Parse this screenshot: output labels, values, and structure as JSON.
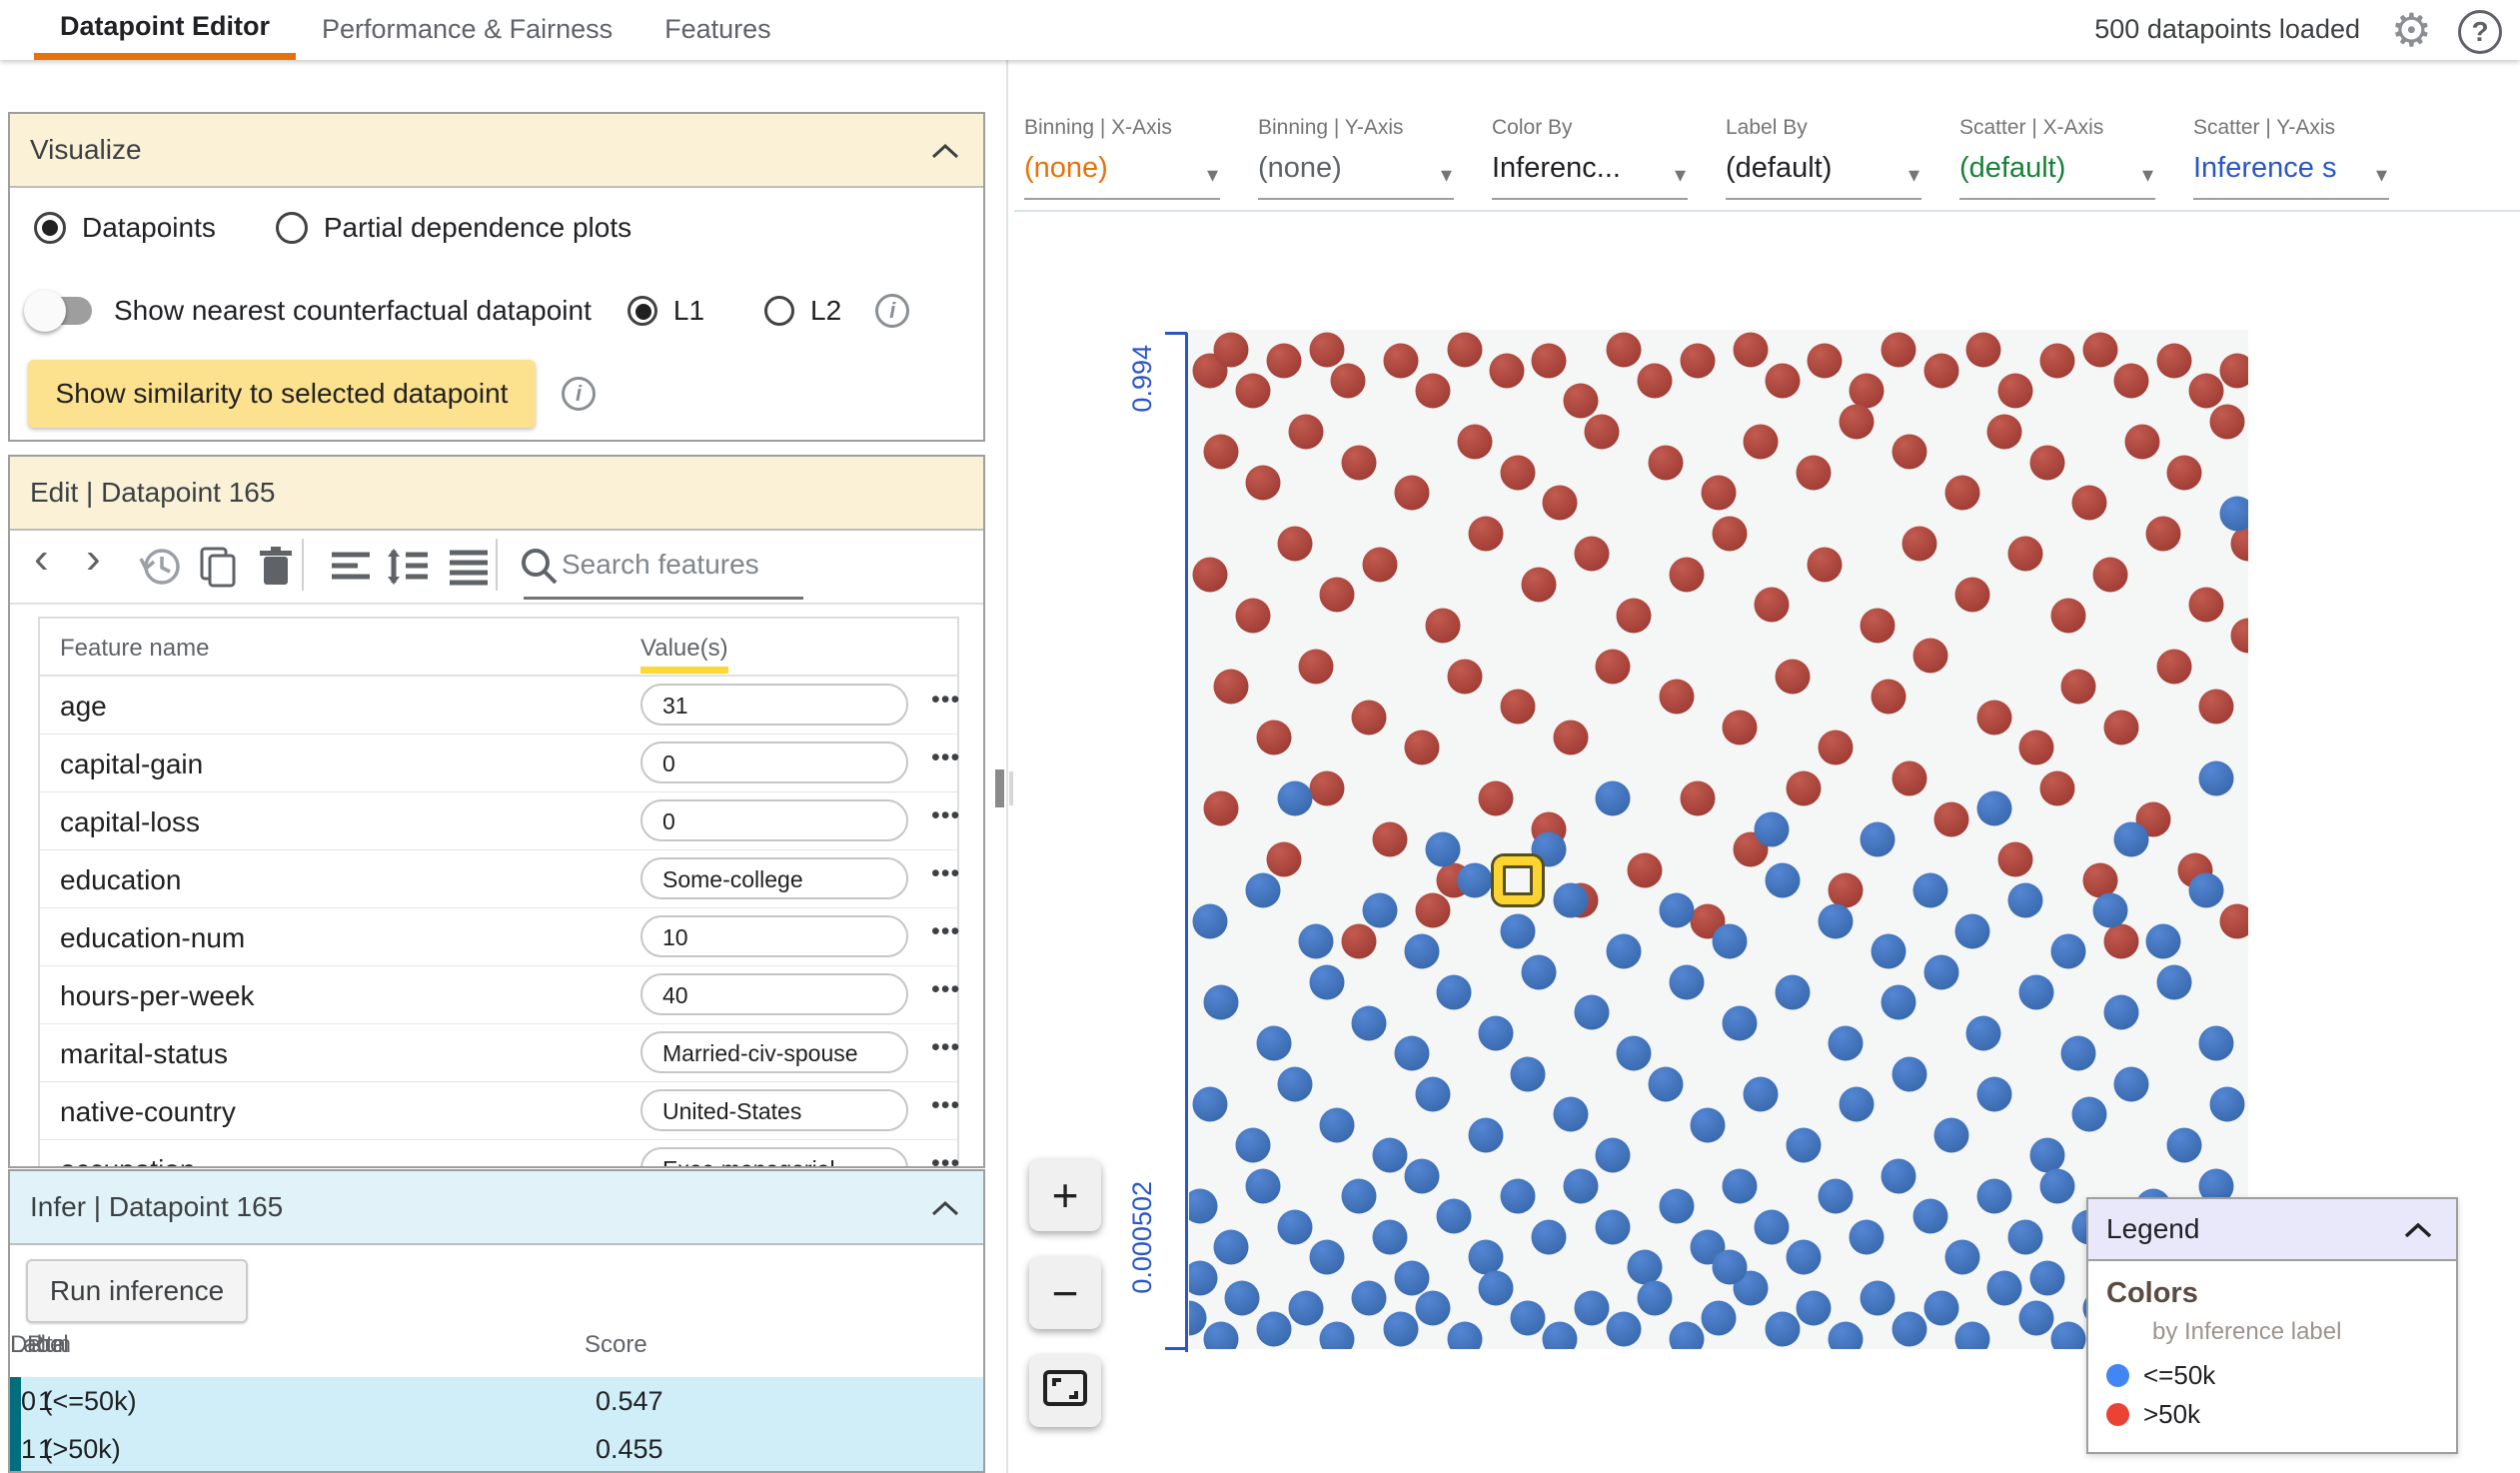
{
  "top_nav": {
    "tabs": [
      {
        "label": "Datapoint Editor",
        "active": true
      },
      {
        "label": "Performance & Fairness",
        "active": false
      },
      {
        "label": "Features",
        "active": false
      }
    ],
    "status": "500 datapoints loaded",
    "accent_color": "#e8710a"
  },
  "visualize": {
    "title": "Visualize",
    "radio_datapoints": "Datapoints",
    "radio_pdp": "Partial dependence plots",
    "toggle_label": "Show nearest counterfactual datapoint",
    "l1_label": "L1",
    "l2_label": "L2",
    "similarity_button": "Show similarity to selected datapoint"
  },
  "edit": {
    "title": "Edit | Datapoint 165",
    "search_placeholder": "Search features",
    "columns": {
      "name": "Feature name",
      "values": "Value(s)"
    },
    "features": [
      {
        "name": "age",
        "value": "31"
      },
      {
        "name": "capital-gain",
        "value": "0"
      },
      {
        "name": "capital-loss",
        "value": "0"
      },
      {
        "name": "education",
        "value": "Some-college"
      },
      {
        "name": "education-num",
        "value": "10"
      },
      {
        "name": "hours-per-week",
        "value": "40"
      },
      {
        "name": "marital-status",
        "value": "Married-civ-spouse"
      },
      {
        "name": "native-country",
        "value": "United-States"
      },
      {
        "name": "occupation",
        "value": "Exec-managerial"
      }
    ]
  },
  "infer": {
    "title": "Infer | Datapoint 165",
    "run_button": "Run inference",
    "columns": [
      "Run",
      "Label",
      "Score",
      "Delta"
    ],
    "rows": [
      {
        "run": "1",
        "label": "0 (<=50k)",
        "score": "0.547",
        "delta": ""
      },
      {
        "run": "1",
        "label": "1 (>50k)",
        "score": "0.455",
        "delta": ""
      }
    ],
    "row_accent_color": "#006e7f"
  },
  "controls": [
    {
      "label": "Binning | X-Axis",
      "value": "(none)",
      "value_color": "#e8710a"
    },
    {
      "label": "Binning | Y-Axis",
      "value": "(none)",
      "value_color": "#5f6368"
    },
    {
      "label": "Color By",
      "value": "Inferenc...",
      "value_color": "#202124"
    },
    {
      "label": "Label By",
      "value": "(default)",
      "value_color": "#202124"
    },
    {
      "label": "Scatter | X-Axis",
      "value": "(default)",
      "value_color": "#188038"
    },
    {
      "label": "Scatter | Y-Axis",
      "value": "Inference s",
      "value_color": "#2a56c6"
    }
  ],
  "zoom_controls": {
    "zoom_in": "+",
    "zoom_out": "−"
  },
  "legend": {
    "title": "Legend",
    "colors_heading": "Colors",
    "subtitle": "by Inference label",
    "items": [
      {
        "label": "<=50k",
        "color": "#4285f4"
      },
      {
        "label": ">50k",
        "color": "#ea4335"
      }
    ]
  },
  "chart_data": {
    "type": "scatter",
    "y_axis_top_label": "0.994",
    "y_axis_bottom_label": "0.000502",
    "axis_color": "#2a56c6",
    "units": "percent of plot area, y measured downward from top",
    "selected_point": {
      "x": 31,
      "y": 54,
      "marker_color": "#fdd32f"
    },
    "series": [
      {
        "name": ">50k",
        "css": "r",
        "color": "#a94438",
        "points": [
          [
            2,
            4
          ],
          [
            4,
            2
          ],
          [
            6,
            6
          ],
          [
            9,
            3
          ],
          [
            13,
            2
          ],
          [
            15,
            5
          ],
          [
            20,
            3
          ],
          [
            23,
            6
          ],
          [
            26,
            2
          ],
          [
            30,
            4
          ],
          [
            34,
            3
          ],
          [
            37,
            7
          ],
          [
            41,
            2
          ],
          [
            44,
            5
          ],
          [
            48,
            3
          ],
          [
            53,
            2
          ],
          [
            56,
            5
          ],
          [
            60,
            3
          ],
          [
            64,
            6
          ],
          [
            67,
            2
          ],
          [
            71,
            4
          ],
          [
            75,
            2
          ],
          [
            78,
            6
          ],
          [
            82,
            3
          ],
          [
            86,
            2
          ],
          [
            89,
            5
          ],
          [
            93,
            3
          ],
          [
            96,
            6
          ],
          [
            99,
            4
          ],
          [
            3,
            12
          ],
          [
            7,
            15
          ],
          [
            11,
            10
          ],
          [
            16,
            13
          ],
          [
            21,
            16
          ],
          [
            27,
            11
          ],
          [
            31,
            14
          ],
          [
            35,
            17
          ],
          [
            39,
            10
          ],
          [
            45,
            13
          ],
          [
            50,
            16
          ],
          [
            54,
            11
          ],
          [
            59,
            14
          ],
          [
            63,
            9
          ],
          [
            68,
            12
          ],
          [
            73,
            16
          ],
          [
            77,
            10
          ],
          [
            81,
            13
          ],
          [
            85,
            17
          ],
          [
            90,
            11
          ],
          [
            94,
            14
          ],
          [
            98,
            9
          ],
          [
            2,
            24
          ],
          [
            6,
            28
          ],
          [
            10,
            21
          ],
          [
            14,
            26
          ],
          [
            18,
            23
          ],
          [
            24,
            29
          ],
          [
            28,
            20
          ],
          [
            33,
            25
          ],
          [
            38,
            22
          ],
          [
            42,
            28
          ],
          [
            47,
            24
          ],
          [
            51,
            20
          ],
          [
            55,
            27
          ],
          [
            60,
            23
          ],
          [
            65,
            29
          ],
          [
            69,
            21
          ],
          [
            74,
            26
          ],
          [
            79,
            22
          ],
          [
            83,
            28
          ],
          [
            87,
            24
          ],
          [
            92,
            20
          ],
          [
            96,
            27
          ],
          [
            100,
            21
          ],
          [
            4,
            35
          ],
          [
            8,
            40
          ],
          [
            12,
            33
          ],
          [
            17,
            38
          ],
          [
            22,
            41
          ],
          [
            26,
            34
          ],
          [
            31,
            37
          ],
          [
            36,
            40
          ],
          [
            40,
            33
          ],
          [
            46,
            36
          ],
          [
            52,
            39
          ],
          [
            57,
            34
          ],
          [
            61,
            41
          ],
          [
            66,
            36
          ],
          [
            70,
            32
          ],
          [
            76,
            38
          ],
          [
            80,
            41
          ],
          [
            84,
            35
          ],
          [
            88,
            39
          ],
          [
            93,
            33
          ],
          [
            97,
            37
          ],
          [
            100,
            30
          ],
          [
            3,
            47
          ],
          [
            9,
            52
          ],
          [
            13,
            45
          ],
          [
            19,
            50
          ],
          [
            25,
            54
          ],
          [
            29,
            46
          ],
          [
            34,
            49
          ],
          [
            43,
            53
          ],
          [
            48,
            46
          ],
          [
            53,
            51
          ],
          [
            58,
            45
          ],
          [
            62,
            55
          ],
          [
            72,
            48
          ],
          [
            78,
            52
          ],
          [
            82,
            45
          ],
          [
            86,
            54
          ],
          [
            91,
            48
          ],
          [
            95,
            53
          ],
          [
            37,
            56
          ],
          [
            68,
            44
          ],
          [
            16,
            60
          ],
          [
            49,
            58
          ],
          [
            88,
            60
          ],
          [
            99,
            58
          ],
          [
            23,
            57
          ]
        ]
      },
      {
        "name": "<=50k",
        "css": "b",
        "color": "#4172bf",
        "points": [
          [
            10,
            46
          ],
          [
            24,
            51
          ],
          [
            34,
            51
          ],
          [
            40,
            46
          ],
          [
            55,
            49
          ],
          [
            65,
            50
          ],
          [
            76,
            47
          ],
          [
            89,
            50
          ],
          [
            97,
            44
          ],
          [
            99,
            18
          ],
          [
            2,
            58
          ],
          [
            7,
            55
          ],
          [
            12,
            60
          ],
          [
            18,
            57
          ],
          [
            22,
            61
          ],
          [
            27,
            54
          ],
          [
            31,
            59
          ],
          [
            36,
            56
          ],
          [
            41,
            61
          ],
          [
            46,
            57
          ],
          [
            51,
            60
          ],
          [
            56,
            54
          ],
          [
            61,
            58
          ],
          [
            66,
            61
          ],
          [
            70,
            55
          ],
          [
            74,
            59
          ],
          [
            79,
            56
          ],
          [
            83,
            61
          ],
          [
            87,
            57
          ],
          [
            92,
            60
          ],
          [
            96,
            55
          ],
          [
            3,
            66
          ],
          [
            8,
            70
          ],
          [
            13,
            64
          ],
          [
            17,
            68
          ],
          [
            21,
            71
          ],
          [
            25,
            65
          ],
          [
            29,
            69
          ],
          [
            33,
            63
          ],
          [
            38,
            67
          ],
          [
            42,
            71
          ],
          [
            47,
            64
          ],
          [
            52,
            68
          ],
          [
            57,
            65
          ],
          [
            62,
            70
          ],
          [
            67,
            66
          ],
          [
            71,
            63
          ],
          [
            75,
            69
          ],
          [
            80,
            65
          ],
          [
            84,
            71
          ],
          [
            88,
            67
          ],
          [
            93,
            64
          ],
          [
            97,
            70
          ],
          [
            2,
            76
          ],
          [
            6,
            80
          ],
          [
            10,
            74
          ],
          [
            14,
            78
          ],
          [
            19,
            81
          ],
          [
            23,
            75
          ],
          [
            28,
            79
          ],
          [
            32,
            73
          ],
          [
            36,
            77
          ],
          [
            40,
            81
          ],
          [
            45,
            74
          ],
          [
            49,
            78
          ],
          [
            54,
            75
          ],
          [
            58,
            80
          ],
          [
            63,
            76
          ],
          [
            68,
            73
          ],
          [
            72,
            79
          ],
          [
            76,
            75
          ],
          [
            81,
            81
          ],
          [
            85,
            77
          ],
          [
            89,
            74
          ],
          [
            94,
            80
          ],
          [
            98,
            76
          ],
          [
            1,
            86
          ],
          [
            4,
            90
          ],
          [
            7,
            84
          ],
          [
            10,
            88
          ],
          [
            13,
            91
          ],
          [
            16,
            85
          ],
          [
            19,
            89
          ],
          [
            22,
            83
          ],
          [
            25,
            87
          ],
          [
            28,
            91
          ],
          [
            31,
            85
          ],
          [
            34,
            89
          ],
          [
            37,
            84
          ],
          [
            40,
            88
          ],
          [
            43,
            92
          ],
          [
            46,
            86
          ],
          [
            49,
            90
          ],
          [
            52,
            84
          ],
          [
            55,
            88
          ],
          [
            58,
            91
          ],
          [
            61,
            85
          ],
          [
            64,
            89
          ],
          [
            67,
            83
          ],
          [
            70,
            87
          ],
          [
            73,
            91
          ],
          [
            76,
            85
          ],
          [
            79,
            89
          ],
          [
            82,
            84
          ],
          [
            85,
            88
          ],
          [
            88,
            92
          ],
          [
            91,
            86
          ],
          [
            94,
            90
          ],
          [
            97,
            84
          ],
          [
            99,
            88
          ],
          [
            0,
            97
          ],
          [
            3,
            99
          ],
          [
            5,
            95
          ],
          [
            8,
            98
          ],
          [
            11,
            96
          ],
          [
            14,
            99
          ],
          [
            17,
            95
          ],
          [
            20,
            98
          ],
          [
            23,
            96
          ],
          [
            26,
            99
          ],
          [
            29,
            94
          ],
          [
            32,
            97
          ],
          [
            35,
            99
          ],
          [
            38,
            96
          ],
          [
            41,
            98
          ],
          [
            44,
            95
          ],
          [
            47,
            99
          ],
          [
            50,
            97
          ],
          [
            53,
            94
          ],
          [
            56,
            98
          ],
          [
            59,
            96
          ],
          [
            62,
            99
          ],
          [
            65,
            95
          ],
          [
            68,
            98
          ],
          [
            71,
            96
          ],
          [
            74,
            99
          ],
          [
            77,
            94
          ],
          [
            80,
            97
          ],
          [
            83,
            99
          ],
          [
            86,
            96
          ],
          [
            89,
            98
          ],
          [
            92,
            95
          ],
          [
            95,
            99
          ],
          [
            98,
            97
          ],
          [
            1,
            93
          ],
          [
            21,
            93
          ],
          [
            51,
            92
          ],
          [
            81,
            93
          ],
          [
            91,
            93
          ]
        ]
      }
    ]
  }
}
